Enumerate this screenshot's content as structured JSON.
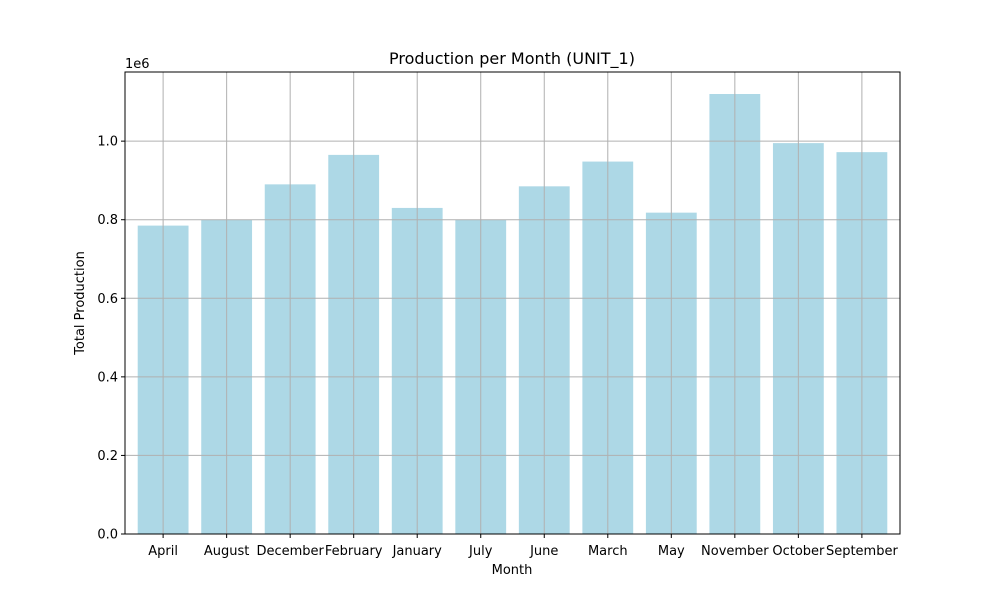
{
  "chart_data": {
    "type": "bar",
    "title": "Production per Month (UNIT_1)",
    "xlabel": "Month",
    "ylabel": "Total Production",
    "y_scale_label": "1e6",
    "categories": [
      "April",
      "August",
      "December",
      "February",
      "January",
      "July",
      "June",
      "March",
      "May",
      "November",
      "October",
      "September"
    ],
    "values": [
      785000,
      800000,
      890000,
      965000,
      830000,
      800000,
      885000,
      948000,
      818000,
      1120000,
      995000,
      972000
    ],
    "y_ticks": [
      0,
      200000,
      400000,
      600000,
      800000,
      1000000
    ],
    "y_tick_labels": [
      "0.0",
      "0.2",
      "0.4",
      "0.6",
      "0.8",
      "1.0"
    ],
    "ylim": [
      0,
      1176000
    ],
    "grid": true,
    "bar_color": "#add8e6",
    "grid_color": "#b0b0b0"
  }
}
